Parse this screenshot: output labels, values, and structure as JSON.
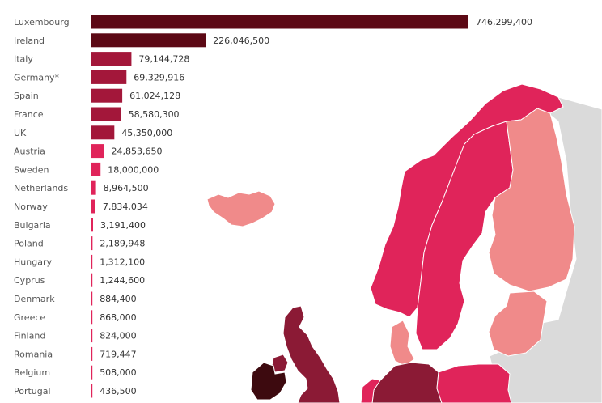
{
  "chart_data": {
    "type": "bar",
    "orientation": "horizontal",
    "title": "",
    "xlabel": "",
    "ylabel": "",
    "xlim": [
      0,
      746299400
    ],
    "grid": false,
    "legend": "none",
    "categories": [
      "Luxembourg",
      "Ireland",
      "Italy",
      "Germany*",
      "Spain",
      "France",
      "UK",
      "Austria",
      "Sweden",
      "Netherlands",
      "Norway",
      "Bulgaria",
      "Poland",
      "Hungary",
      "Cyprus",
      "Denmark",
      "Greece",
      "Finland",
      "Romania",
      "Belgium",
      "Portugal"
    ],
    "values": [
      746299400,
      226046500,
      79144728,
      69329916,
      61024128,
      58580300,
      45350000,
      24853650,
      18000000,
      8964500,
      7834034,
      3191400,
      2189948,
      1312100,
      1244600,
      884400,
      868000,
      824000,
      719447,
      508000,
      436500
    ],
    "value_labels": [
      "746,299,400",
      "226,046,500",
      "79,144,728",
      "69,329,916",
      "61,024,128",
      "58,580,300",
      "45,350,000",
      "24,853,650",
      "18,000,000",
      "8,964,500",
      "7,834,034",
      "3,191,400",
      "2,189,948",
      "1,312,100",
      "1,244,600",
      "884,400",
      "868,000",
      "824,000",
      "719,447",
      "508,000",
      "436,500"
    ],
    "colors": {
      "darkest": "#3d0a0f",
      "dark": "#5c0915",
      "medium_dark": "#8b1a35",
      "medium": "#a3173a",
      "bright": "#e0245a",
      "light": "#f08a8a",
      "no_data": "#dadada",
      "border": "#ffffff"
    }
  }
}
